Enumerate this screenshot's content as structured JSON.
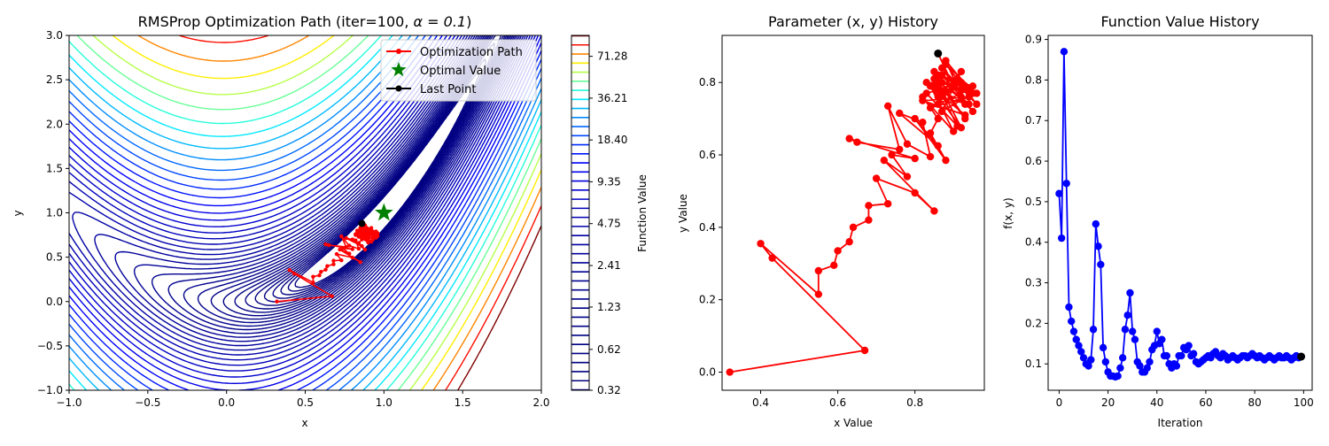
{
  "chart_data": [
    {
      "type": "contour",
      "title_prefix": "RMSProp Optimization Path (iter=100, ",
      "title_math": "α = 0.1",
      "title_suffix": ")",
      "xlabel": "x",
      "ylabel": "y",
      "xlim": [
        -1.0,
        2.0
      ],
      "ylim": [
        -1.0,
        3.0
      ],
      "x_ticks": [
        "−1.0",
        "−0.5",
        "0.0",
        "0.5",
        "1.0",
        "1.5",
        "2.0"
      ],
      "x_tick_values": [
        -1.0,
        -0.5,
        0.0,
        0.5,
        1.0,
        1.5,
        2.0
      ],
      "y_ticks": [
        "−1.0",
        "−0.5",
        "0.0",
        "0.5",
        "1.0",
        "1.5",
        "2.0",
        "2.5",
        "3.0"
      ],
      "y_tick_values": [
        -1.0,
        -0.5,
        0.0,
        0.5,
        1.0,
        1.5,
        2.0,
        2.5,
        3.0
      ],
      "function": "(1-x)^2 + 10(y-x^2)^2",
      "optimum": [
        1.0,
        1.0
      ],
      "legend": {
        "placement": "top-right",
        "entries": [
          "Optimization Path",
          "Optimal Value",
          "Last Point"
        ]
      },
      "colorbar": {
        "label": "Function Value",
        "tick_labels": [
          "0.32",
          "0.62",
          "1.23",
          "2.41",
          "4.75",
          "9.35",
          "18.40",
          "36.21",
          "71.28"
        ],
        "tick_values": [
          0.32,
          0.62,
          1.23,
          2.41,
          4.75,
          9.35,
          18.4,
          36.21,
          71.28
        ],
        "levels_min": 0.32,
        "levels_max": 100,
        "level_count": 40,
        "colormap": "jet"
      },
      "path_color": "#ff0000",
      "last_point_color": "#000000",
      "optimum_color": "#008000"
    },
    {
      "type": "line",
      "title": "Parameter (x, y) History",
      "xlabel": "x Value",
      "ylabel": "y Value",
      "xlim": [
        0.3,
        0.98
      ],
      "ylim": [
        -0.05,
        0.93
      ],
      "x_ticks": [
        "0.4",
        "0.6",
        "0.8"
      ],
      "x_tick_values": [
        0.4,
        0.6,
        0.8
      ],
      "y_ticks": [
        "0.0",
        "0.2",
        "0.4",
        "0.6",
        "0.8"
      ],
      "y_tick_values": [
        0.0,
        0.2,
        0.4,
        0.6,
        0.8
      ],
      "color": "#ff0000",
      "last_point_color": "#000000",
      "points": [
        [
          0.32,
          0.0
        ],
        [
          0.67,
          0.06
        ],
        [
          0.43,
          0.315
        ],
        [
          0.4,
          0.355
        ],
        [
          0.55,
          0.215
        ],
        [
          0.55,
          0.28
        ],
        [
          0.59,
          0.295
        ],
        [
          0.6,
          0.335
        ],
        [
          0.63,
          0.36
        ],
        [
          0.64,
          0.4
        ],
        [
          0.68,
          0.42
        ],
        [
          0.68,
          0.46
        ],
        [
          0.73,
          0.465
        ],
        [
          0.7,
          0.535
        ],
        [
          0.8,
          0.495
        ],
        [
          0.85,
          0.445
        ],
        [
          0.72,
          0.585
        ],
        [
          0.78,
          0.54
        ],
        [
          0.74,
          0.6
        ],
        [
          0.8,
          0.59
        ],
        [
          0.63,
          0.645
        ],
        [
          0.65,
          0.635
        ],
        [
          0.76,
          0.615
        ],
        [
          0.73,
          0.735
        ],
        [
          0.78,
          0.63
        ],
        [
          0.84,
          0.595
        ],
        [
          0.82,
          0.69
        ],
        [
          0.76,
          0.715
        ],
        [
          0.86,
          0.625
        ],
        [
          0.8,
          0.7
        ],
        [
          0.88,
          0.585
        ],
        [
          0.84,
          0.66
        ],
        [
          0.86,
          0.7
        ],
        [
          0.82,
          0.76
        ],
        [
          0.9,
          0.665
        ],
        [
          0.84,
          0.79
        ],
        [
          0.92,
          0.675
        ],
        [
          0.86,
          0.8
        ],
        [
          0.93,
          0.7
        ],
        [
          0.85,
          0.83
        ],
        [
          0.95,
          0.72
        ],
        [
          0.87,
          0.84
        ],
        [
          0.96,
          0.74
        ],
        [
          0.88,
          0.85
        ],
        [
          0.96,
          0.77
        ],
        [
          0.86,
          0.82
        ],
        [
          0.95,
          0.79
        ],
        [
          0.83,
          0.8
        ],
        [
          0.93,
          0.71
        ],
        [
          0.82,
          0.75
        ],
        [
          0.94,
          0.76
        ],
        [
          0.84,
          0.73
        ],
        [
          0.92,
          0.8
        ],
        [
          0.83,
          0.77
        ],
        [
          0.91,
          0.68
        ],
        [
          0.85,
          0.81
        ],
        [
          0.94,
          0.74
        ],
        [
          0.86,
          0.76
        ],
        [
          0.92,
          0.83
        ],
        [
          0.87,
          0.72
        ],
        [
          0.95,
          0.77
        ],
        [
          0.88,
          0.86
        ],
        [
          0.93,
          0.74
        ],
        [
          0.85,
          0.79
        ],
        [
          0.91,
          0.81
        ],
        [
          0.86,
          0.74
        ],
        [
          0.94,
          0.78
        ],
        [
          0.87,
          0.82
        ],
        [
          0.92,
          0.76
        ],
        [
          0.86,
          0.8
        ],
        [
          0.93,
          0.79
        ],
        [
          0.87,
          0.77
        ],
        [
          0.91,
          0.8
        ],
        [
          0.86,
          0.78
        ],
        [
          0.92,
          0.78
        ],
        [
          0.87,
          0.8
        ],
        [
          0.9,
          0.79
        ],
        [
          0.86,
          0.88
        ]
      ]
    },
    {
      "type": "line",
      "title": "Function Value History",
      "xlabel": "Iteration",
      "ylabel": "f(x, y)",
      "xlim": [
        -4.5,
        103.5
      ],
      "ylim": [
        0.035,
        0.91
      ],
      "x_ticks": [
        "0",
        "20",
        "40",
        "60",
        "80",
        "100"
      ],
      "x_tick_values": [
        0,
        20,
        40,
        60,
        80,
        100
      ],
      "y_ticks": [
        "0.1",
        "0.2",
        "0.3",
        "0.4",
        "0.5",
        "0.6",
        "0.7",
        "0.8",
        "0.9"
      ],
      "y_tick_values": [
        0.1,
        0.2,
        0.3,
        0.4,
        0.5,
        0.6,
        0.7,
        0.8,
        0.9
      ],
      "color": "#0000ff",
      "last_point_color": "#000000",
      "values": [
        0.52,
        0.41,
        0.87,
        0.545,
        0.24,
        0.205,
        0.18,
        0.16,
        0.145,
        0.13,
        0.115,
        0.1,
        0.095,
        0.11,
        0.185,
        0.445,
        0.39,
        0.345,
        0.14,
        0.105,
        0.08,
        0.07,
        0.07,
        0.068,
        0.07,
        0.09,
        0.115,
        0.185,
        0.22,
        0.275,
        0.18,
        0.16,
        0.105,
        0.095,
        0.08,
        0.08,
        0.09,
        0.105,
        0.135,
        0.145,
        0.18,
        0.15,
        0.16,
        0.12,
        0.12,
        0.1,
        0.09,
        0.1,
        0.095,
        0.12,
        0.12,
        0.14,
        0.135,
        0.145,
        0.12,
        0.125,
        0.105,
        0.1,
        0.105,
        0.11,
        0.115,
        0.12,
        0.115,
        0.125,
        0.13,
        0.12,
        0.115,
        0.125,
        0.12,
        0.11,
        0.115,
        0.12,
        0.115,
        0.11,
        0.115,
        0.12,
        0.12,
        0.115,
        0.12,
        0.125,
        0.12,
        0.115,
        0.12,
        0.115,
        0.11,
        0.115,
        0.12,
        0.115,
        0.11,
        0.115,
        0.12,
        0.115,
        0.115,
        0.12,
        0.115,
        0.11,
        0.115,
        0.12,
        0.115,
        0.118
      ]
    }
  ]
}
